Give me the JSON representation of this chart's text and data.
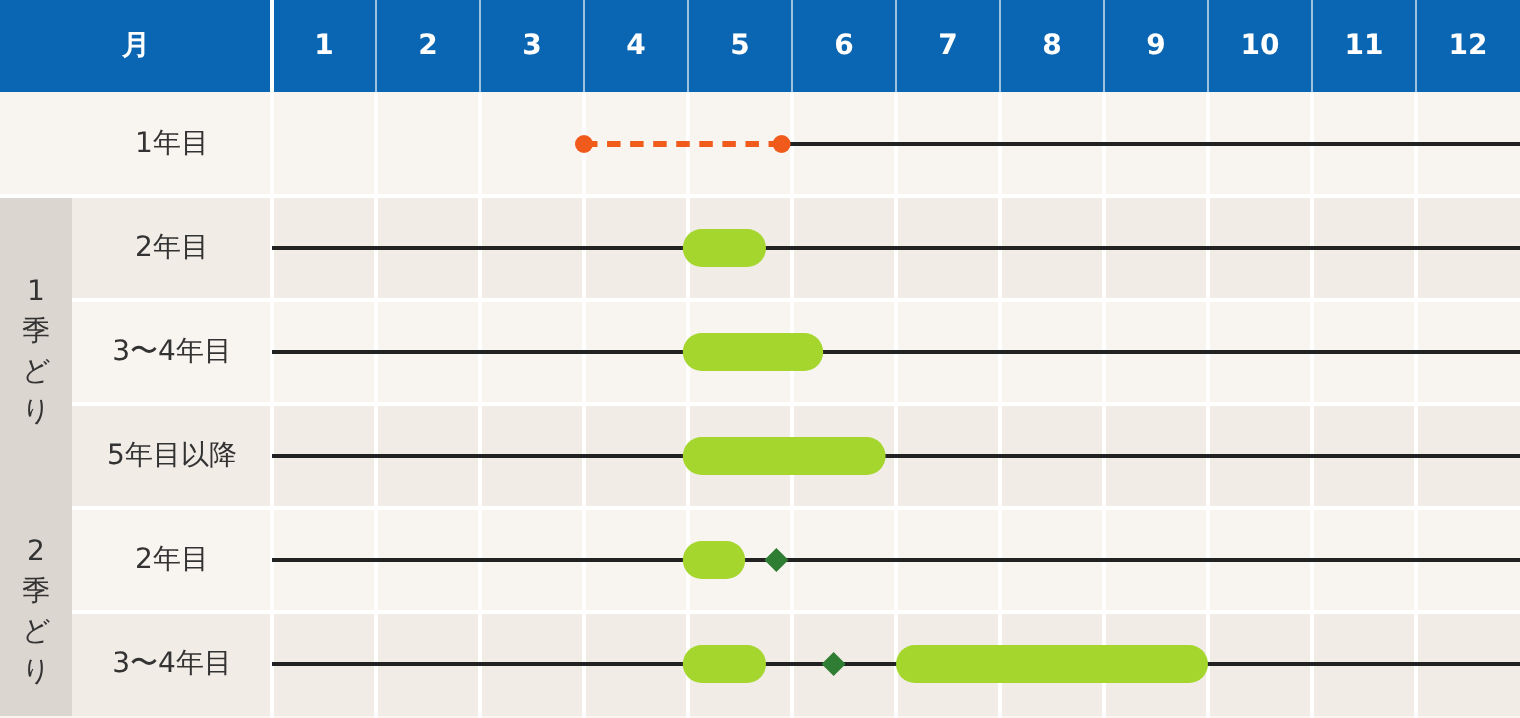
{
  "chart_data": {
    "type": "bar",
    "orientation": "horizontal",
    "xlabel": "月",
    "categories": [
      "1年目",
      "2年目",
      "3〜4年目",
      "5年目以降",
      "2年目",
      "3〜4年目"
    ],
    "annotations": [
      "1季どり",
      "2季どり"
    ],
    "xlim": [
      0.5,
      12.5
    ],
    "xticks": [
      1,
      2,
      3,
      4,
      5,
      6,
      7,
      8,
      9,
      10,
      11,
      12
    ],
    "grid": true,
    "series": [
      {
        "type": "bar",
        "color": "#222222",
        "line_style": "solid",
        "marker": "none",
        "base": [
          5.4,
          0.5,
          0.5,
          0.5,
          0.5,
          0.5
        ],
        "values": [
          7.1,
          12,
          12,
          12,
          12,
          12
        ]
      },
      {
        "type": "scatter",
        "color": "#f05a1a",
        "marker": "circle",
        "values": [
          3.5,
          null,
          null,
          null,
          null,
          null
        ]
      },
      {
        "type": "scatter",
        "color": "#f05a1a",
        "marker": "circle",
        "values": [
          5.4,
          null,
          null,
          null,
          null,
          null
        ]
      },
      {
        "type": "bar",
        "color": "#f05a1a",
        "line_style": "dashed",
        "base": [
          3.5,
          null,
          null,
          null,
          null,
          null
        ],
        "values": [
          1.9,
          null,
          null,
          null,
          null,
          null
        ]
      },
      {
        "type": "bar",
        "color": "#a5d62d",
        "base": [
          null,
          4.45,
          4.45,
          4.45,
          4.45,
          4.45
        ],
        "values": [
          null,
          0.8,
          1.35,
          1.95,
          0.6,
          0.8
        ]
      },
      {
        "type": "bar",
        "color": "#a5d62d",
        "base": [
          null,
          null,
          null,
          null,
          null,
          6.5
        ],
        "values": [
          null,
          null,
          null,
          null,
          null,
          3
        ]
      },
      {
        "type": "scatter",
        "color": "#2e7d32",
        "marker": "diamond",
        "values": [
          null,
          null,
          null,
          null,
          5.35,
          5.9
        ]
      }
    ]
  }
}
